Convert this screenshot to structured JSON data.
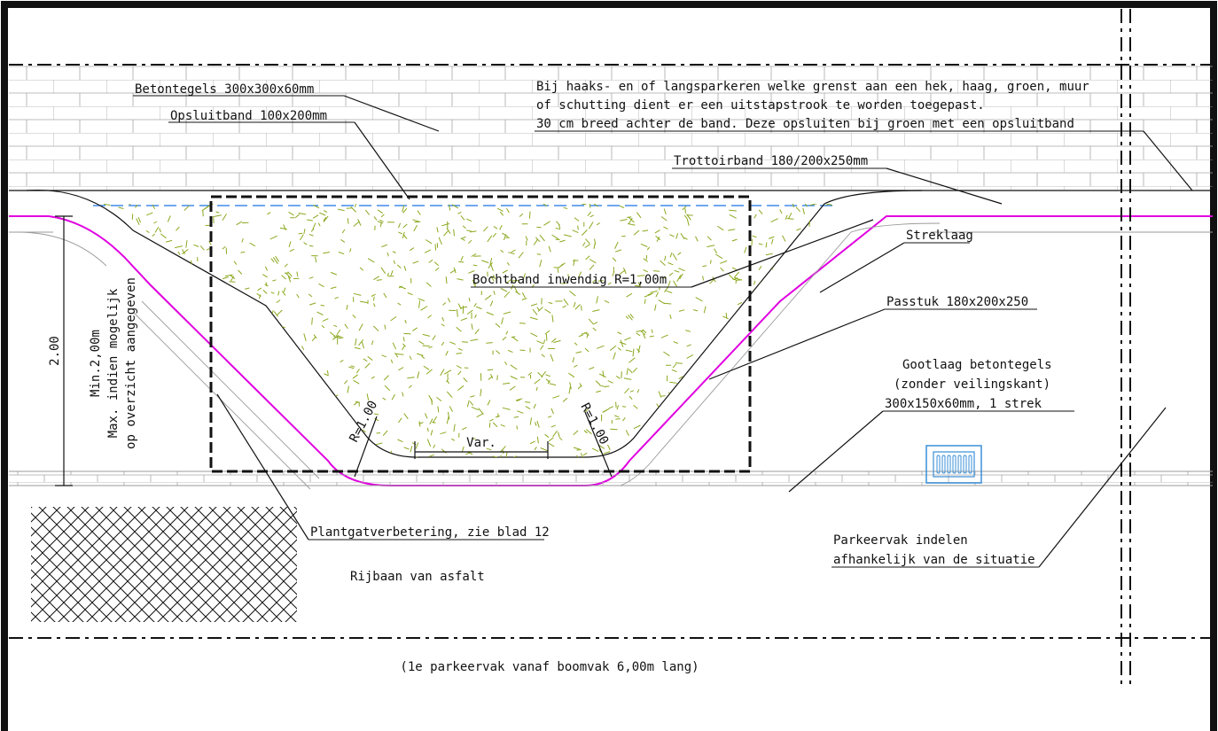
{
  "labels": {
    "betontegels": "Betontegels 300x300x60mm",
    "opsluitband": "Opsluitband 100x200mm",
    "note_line1": "Bij haaks- en of langsparkeren welke grenst aan een hek, haag, groen, muur",
    "note_line2": "of schutting dient er een uitstapstrook te worden toegepast.",
    "note_line3": "30 cm breed achter de band. Deze opsluiten bij groen met een opsluitband",
    "trottoirband": "Trottoirband 180/200x250mm",
    "streklaag": "Streklaag",
    "bochtband": "Bochtband inwendig R=1,00m",
    "passtuk": "Passtuk 180x200x250",
    "gootlaag_line1": "Gootlaag betontegels",
    "gootlaag_line2": "(zonder veilingskant)",
    "gootlaag_line3": "300x150x60mm, 1 strek",
    "dimension_200": "2.00",
    "min_line1": "Min.2,00m",
    "min_line2": "Max. indien mogelijk",
    "min_line3": "op overzicht aangegeven",
    "radius_left": "R=1.00",
    "radius_right": "R=1.00",
    "var": "Var.",
    "plantgat": "Plantgatverbetering, zie blad 12",
    "parkeervak_line1": "Parkeervak indelen",
    "parkeervak_line2": "afhankelijk van de situatie",
    "rijbaan": "Rijbaan van asfalt",
    "footer_note": "(1e parkeervak vanaf boomvak 6,00m lang)"
  },
  "colors": {
    "frame": "#111111",
    "magenta_edge": "#e000e0",
    "blue_edge": "#1a73e8",
    "grass": "#8aa81e",
    "gully": "#3a8fd8"
  },
  "icons": {
    "gully": "street-drain-grate-icon",
    "hatch": "crosshatch-asphalt-pattern"
  }
}
